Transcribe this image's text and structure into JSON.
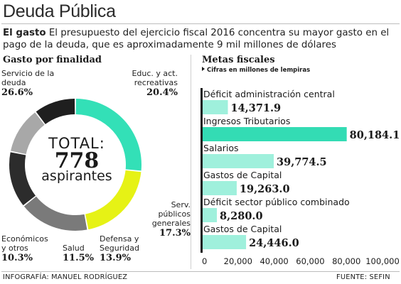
{
  "title": "Deuda Pública",
  "intro": {
    "lead": "El gasto",
    "text": " El presupuesto del ejercicio fiscal 2016 concentra su mayor gasto en el pago de la deuda, que es aproximadamente 9 mil millones de dólares"
  },
  "left_panel": {
    "heading": "Gasto por finalidad",
    "total_word": "TOTAL:",
    "total_value": "778",
    "total_unit": "aspirantes"
  },
  "right_panel": {
    "heading": "Metas fiscales",
    "subheading": "Cifras en millones de lempiras"
  },
  "credits": {
    "left": "INFOGRAFÍA: MANUEL RODRÍGUEZ",
    "right": "FUENTE: SEFIN"
  },
  "colors": {
    "teal": "#33e0b7",
    "yellow": "#e6f215",
    "gray": "#7a7a7a",
    "dark": "#2c2c2c",
    "light_gray": "#a8a8a8",
    "black": "#1f1f1f",
    "bar": "#9ff0dc",
    "bar_highlight": "#33dcb4"
  },
  "chart_data": [
    {
      "type": "pie",
      "title": "Gasto por finalidad",
      "categories": [
        "Servicio de la deuda",
        "Educ. y act. recreativas",
        "Serv. públicos generales",
        "Defensa y Seguridad",
        "Salud",
        "Económicos y otros"
      ],
      "values": [
        26.6,
        20.4,
        17.3,
        13.9,
        11.5,
        10.3
      ],
      "labels": [
        "26.6%",
        "20.4%",
        "17.3%",
        "13.9%",
        "11.5%",
        "10.3%"
      ],
      "label_lines": [
        [
          "Servicio de la",
          "deuda"
        ],
        [
          "Educ. y act.",
          "recreativas"
        ],
        [
          "Serv.",
          "públicos",
          "generales"
        ],
        [
          "Defensa y",
          "Seguridad"
        ],
        [
          "Salud"
        ],
        [
          "Económicos",
          "y otros"
        ]
      ],
      "colors": [
        "#33e0b7",
        "#e6f215",
        "#7a7a7a",
        "#2c2c2c",
        "#a8a8a8",
        "#1f1f1f"
      ]
    },
    {
      "type": "bar",
      "orientation": "horizontal",
      "title": "Metas fiscales",
      "categories": [
        "Déficit administración central",
        "Ingresos Tributarios",
        "Salarios",
        "Gastos de Capital",
        "Déficit sector público combinado",
        "Gastos de Capital"
      ],
      "values": [
        14371.9,
        80184.1,
        39774.5,
        19263.0,
        8280.0,
        24446.0
      ],
      "value_labels": [
        "14,371.9",
        "80,184.1",
        "39,774.5",
        "19,263.0",
        "8,280.0",
        "24,446.0"
      ],
      "xlim": [
        0,
        100000
      ],
      "xticks": [
        "0",
        "20,000",
        "40,000",
        "60,000",
        "80,000",
        "100,000"
      ],
      "highlight_index": 1,
      "grid": false
    }
  ]
}
